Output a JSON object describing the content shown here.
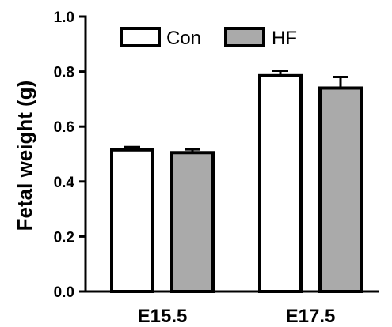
{
  "chart_data": {
    "type": "bar",
    "categories": [
      "E15.5",
      "E17.5"
    ],
    "series": [
      {
        "name": "Con",
        "values": [
          0.515,
          0.785
        ],
        "errors": [
          0.01,
          0.018
        ]
      },
      {
        "name": "HF",
        "values": [
          0.505,
          0.74
        ],
        "errors": [
          0.012,
          0.04
        ]
      }
    ],
    "ylabel": "Fetal weight (g)",
    "xlabel": "",
    "ylim": [
      0,
      1.0
    ],
    "yticks": [
      0.0,
      0.2,
      0.4,
      0.6,
      0.8,
      1.0
    ],
    "ytick_labels": [
      "0.0",
      "0.2",
      "0.4",
      "0.6",
      "0.8",
      "1.0"
    ],
    "legend_position": "top-center",
    "grid": false,
    "colors": {
      "Con": "#ffffff",
      "HF": "#aaaaaa",
      "stroke": "#000000"
    }
  }
}
